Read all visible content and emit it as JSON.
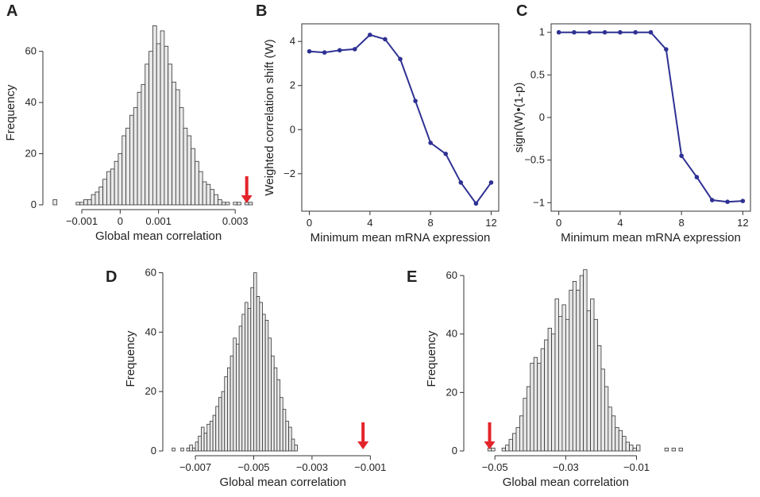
{
  "colors": {
    "histogram_fill": "#e9e9e9",
    "line": "#2e3192",
    "arrow": "#e3242b"
  },
  "panels": {
    "A": {
      "label": "A"
    },
    "B": {
      "label": "B"
    },
    "C": {
      "label": "C"
    },
    "D": {
      "label": "D"
    },
    "E": {
      "label": "E"
    }
  },
  "chart_data": [
    {
      "panel": "A",
      "type": "bar",
      "xlabel": "Global mean correlation",
      "ylabel": "Frequency",
      "xlim": [
        -0.00185,
        0.0037
      ],
      "ylim": [
        0,
        72
      ],
      "xticks": [
        -0.001,
        0,
        0.001,
        0.003
      ],
      "xtick_labels": [
        "-0.001",
        "0",
        "0.001",
        "0.003"
      ],
      "yticks": [
        0,
        20,
        40,
        60
      ],
      "bin_start": -0.00175,
      "bin_width": 0.0001,
      "values": [
        2,
        0,
        0,
        0,
        0,
        0,
        1,
        1,
        2,
        2,
        4,
        5,
        7,
        10,
        13,
        14,
        17,
        20,
        27,
        30,
        35,
        38,
        44,
        47,
        55,
        60,
        70,
        63,
        68,
        62,
        55,
        48,
        45,
        38,
        30,
        27,
        22,
        17,
        13,
        9,
        8,
        6,
        4,
        2,
        1,
        1,
        0,
        1,
        1,
        0,
        1,
        1
      ],
      "marker": {
        "x": 0.0033,
        "direction": "down",
        "color": "#e3242b"
      }
    },
    {
      "panel": "B",
      "type": "line",
      "xlabel": "Minimum mean mRNA expression",
      "ylabel": "Weighted correlation shift (W)",
      "xlim": [
        -0.5,
        12.5
      ],
      "ylim": [
        -3.7,
        4.8
      ],
      "xticks": [
        0,
        4,
        8,
        12
      ],
      "yticks": [
        -2,
        0,
        2,
        4
      ],
      "x": [
        0,
        1,
        2,
        3,
        4,
        5,
        6,
        7,
        8,
        9,
        10,
        11,
        12
      ],
      "y": [
        3.55,
        3.5,
        3.6,
        3.65,
        4.3,
        4.1,
        3.2,
        1.3,
        -0.6,
        -1.1,
        -2.4,
        -3.35,
        -2.4
      ]
    },
    {
      "panel": "C",
      "type": "line",
      "xlabel": "Minimum mean mRNA expression",
      "ylabel": "sign(W)•(1-p)",
      "xlim": [
        -0.5,
        12.5
      ],
      "ylim": [
        -1.1,
        1.1
      ],
      "xticks": [
        0,
        4,
        8,
        12
      ],
      "yticks": [
        -1,
        -0.5,
        0,
        0.5,
        1
      ],
      "ytick_labels": [
        "-1",
        "-0.5",
        "0",
        "0.5",
        "1"
      ],
      "x": [
        0,
        1,
        2,
        3,
        4,
        5,
        6,
        7,
        8,
        9,
        10,
        11,
        12
      ],
      "y": [
        1,
        1,
        1,
        1,
        1,
        1,
        1,
        0.8,
        -0.45,
        -0.7,
        -0.97,
        -0.99,
        -0.98
      ]
    },
    {
      "panel": "D",
      "type": "bar",
      "xlabel": "Global mean correlation",
      "ylabel": "Frequency",
      "xlim": [
        -0.0079,
        -0.0009
      ],
      "ylim": [
        0,
        62
      ],
      "xticks": [
        -0.007,
        -0.005,
        -0.003,
        -0.001
      ],
      "xtick_labels": [
        "-0.007",
        "-0.005",
        "-0.003",
        "-0.001"
      ],
      "yticks": [
        0,
        20,
        40,
        60
      ],
      "bin_start": -0.0078,
      "bin_width": 0.0001,
      "values": [
        1,
        0,
        0,
        1,
        0,
        1,
        2,
        1,
        3,
        5,
        8,
        6,
        9,
        10,
        12,
        15,
        18,
        20,
        25,
        28,
        32,
        38,
        36,
        42,
        46,
        50,
        48,
        55,
        60,
        52,
        50,
        46,
        44,
        38,
        32,
        28,
        24,
        18,
        14,
        10,
        8,
        4,
        2,
        0,
        0,
        0,
        0,
        0,
        0,
        0,
        0
      ],
      "marker": {
        "x": -0.00125,
        "direction": "down",
        "color": "#e3242b"
      }
    },
    {
      "panel": "E",
      "type": "bar",
      "xlabel": "Global mean correlation",
      "ylabel": "Frequency",
      "xlim": [
        -0.057,
        0.002
      ],
      "ylim": [
        0,
        63
      ],
      "xticks": [
        -0.05,
        -0.03,
        -0.01
      ],
      "xtick_labels": [
        "-0.05",
        "-0.03",
        "-0.01"
      ],
      "yticks": [
        0,
        20,
        40,
        60
      ],
      "bin_start": -0.056,
      "bin_width": 0.001,
      "values": [
        0,
        0,
        0,
        0,
        1,
        1,
        0,
        0,
        1,
        2,
        4,
        6,
        8,
        12,
        18,
        22,
        30,
        32,
        30,
        35,
        38,
        42,
        40,
        52,
        46,
        50,
        45,
        55,
        58,
        55,
        60,
        62,
        48,
        52,
        45,
        36,
        28,
        22,
        15,
        12,
        8,
        7,
        5,
        3,
        2,
        1,
        2,
        0,
        0,
        0,
        0,
        0,
        0,
        0,
        1,
        0,
        1,
        0,
        1
      ],
      "marker": {
        "x": -0.0515,
        "direction": "down",
        "color": "#e3242b"
      }
    }
  ]
}
